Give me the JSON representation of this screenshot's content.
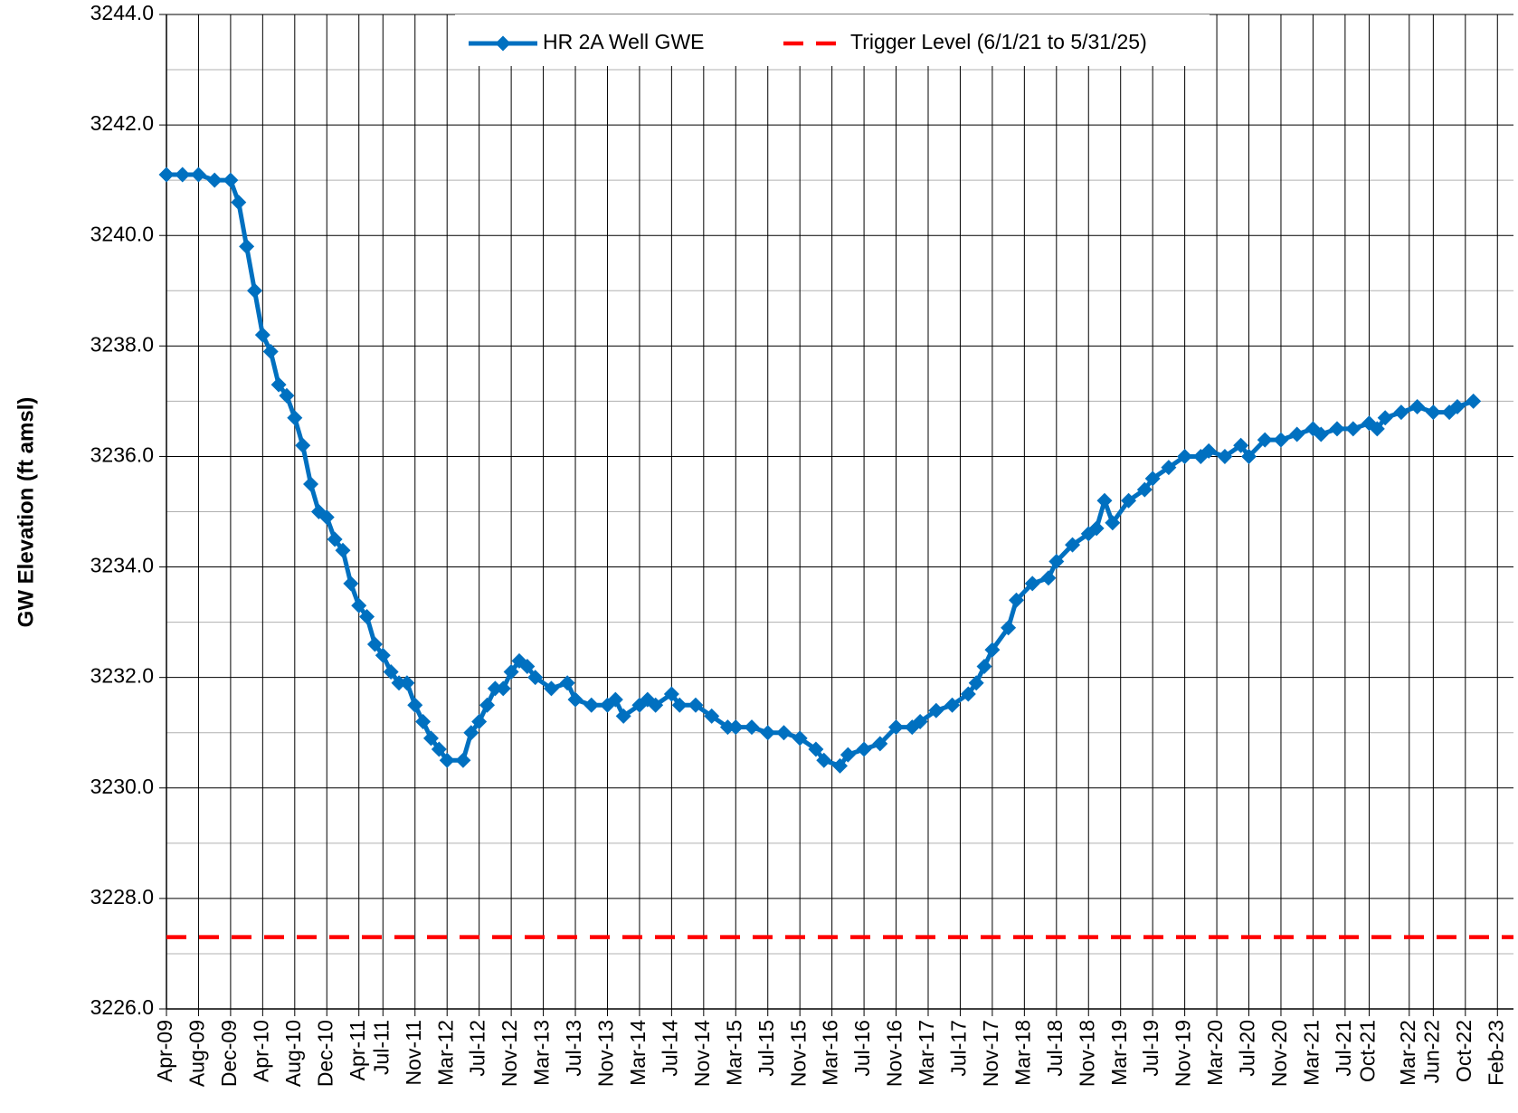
{
  "chart_data": {
    "type": "line",
    "y_label": "GW Elevation (ft amsl)",
    "x": [
      "2009-04",
      "2009-06",
      "2009-08",
      "2009-10",
      "2009-12",
      "2010-01",
      "2010-02",
      "2010-03",
      "2010-04",
      "2010-05",
      "2010-06",
      "2010-07",
      "2010-08",
      "2010-09",
      "2010-10",
      "2010-11",
      "2010-12",
      "2011-01",
      "2011-02",
      "2011-03",
      "2011-04",
      "2011-05",
      "2011-06",
      "2011-07",
      "2011-08",
      "2011-09",
      "2011-10",
      "2011-11",
      "2011-12",
      "2012-01",
      "2012-02",
      "2012-03",
      "2012-05",
      "2012-06",
      "2012-07",
      "2012-08",
      "2012-09",
      "2012-10",
      "2012-11",
      "2012-12",
      "2013-01",
      "2013-02",
      "2013-04",
      "2013-06",
      "2013-07",
      "2013-09",
      "2013-11",
      "2013-12",
      "2014-01",
      "2014-03",
      "2014-04",
      "2014-05",
      "2014-07",
      "2014-08",
      "2014-10",
      "2014-12",
      "2015-02",
      "2015-03",
      "2015-05",
      "2015-07",
      "2015-09",
      "2015-11",
      "2016-01",
      "2016-02",
      "2016-04",
      "2016-05",
      "2016-07",
      "2016-09",
      "2016-11",
      "2017-01",
      "2017-02",
      "2017-04",
      "2017-06",
      "2017-08",
      "2017-09",
      "2017-10",
      "2017-11",
      "2018-01",
      "2018-02",
      "2018-04",
      "2018-06",
      "2018-07",
      "2018-09",
      "2018-11",
      "2018-12",
      "2019-01",
      "2019-02",
      "2019-04",
      "2019-06",
      "2019-07",
      "2019-09",
      "2019-11",
      "2020-01",
      "2020-02",
      "2020-04",
      "2020-06",
      "2020-07",
      "2020-09",
      "2020-11",
      "2021-01",
      "2021-03",
      "2021-04",
      "2021-06",
      "2021-08",
      "2021-10",
      "2021-11",
      "2021-12",
      "2022-02",
      "2022-04",
      "2022-06",
      "2022-08",
      "2022-09",
      "2022-11"
    ],
    "series": [
      {
        "name": "HR 2A Well GWE",
        "color": "#0070c0",
        "marker": "diamond",
        "values": [
          3241.1,
          3241.1,
          3241.1,
          3241.0,
          3241.0,
          3240.6,
          3239.8,
          3239.0,
          3238.2,
          3237.9,
          3237.3,
          3237.1,
          3236.7,
          3236.2,
          3235.5,
          3235.0,
          3234.9,
          3234.5,
          3234.3,
          3233.7,
          3233.3,
          3233.1,
          3232.6,
          3232.4,
          3232.1,
          3231.9,
          3231.9,
          3231.5,
          3231.2,
          3230.9,
          3230.7,
          3230.5,
          3230.5,
          3231.0,
          3231.2,
          3231.5,
          3231.8,
          3231.8,
          3232.1,
          3232.3,
          3232.2,
          3232.0,
          3231.8,
          3231.9,
          3231.6,
          3231.5,
          3231.5,
          3231.6,
          3231.3,
          3231.5,
          3231.6,
          3231.5,
          3231.7,
          3231.5,
          3231.5,
          3231.3,
          3231.1,
          3231.1,
          3231.1,
          3231.0,
          3231.0,
          3230.9,
          3230.7,
          3230.5,
          3230.4,
          3230.6,
          3230.7,
          3230.8,
          3231.1,
          3231.1,
          3231.2,
          3231.4,
          3231.5,
          3231.7,
          3231.9,
          3232.2,
          3232.5,
          3232.9,
          3233.4,
          3233.7,
          3233.8,
          3234.1,
          3234.4,
          3234.6,
          3234.7,
          3235.2,
          3234.8,
          3235.2,
          3235.4,
          3235.6,
          3235.8,
          3236.0,
          3236.0,
          3236.1,
          3236.0,
          3236.2,
          3236.0,
          3236.3,
          3236.3,
          3236.4,
          3236.5,
          3236.4,
          3236.5,
          3236.5,
          3236.6,
          3236.5,
          3236.7,
          3236.8,
          3236.9,
          3236.8,
          3236.8,
          3236.9,
          3237.0
        ]
      }
    ],
    "hlines": [
      {
        "name": "Trigger Level (6/1/21 to 5/31/25)",
        "color": "#ff0000",
        "value": 3227.3,
        "dashed": true
      }
    ],
    "xlim": [
      "2009-04",
      "2023-04"
    ],
    "xticks": [
      {
        "value": "2009-04",
        "label": "Apr-09"
      },
      {
        "value": "2009-08",
        "label": "Aug-09"
      },
      {
        "value": "2009-12",
        "label": "Dec-09"
      },
      {
        "value": "2010-04",
        "label": "Apr-10"
      },
      {
        "value": "2010-08",
        "label": "Aug-10"
      },
      {
        "value": "2010-12",
        "label": "Dec-10"
      },
      {
        "value": "2011-04",
        "label": "Apr-11"
      },
      {
        "value": "2011-07",
        "label": "Jul-11"
      },
      {
        "value": "2011-11",
        "label": "Nov-11"
      },
      {
        "value": "2012-03",
        "label": "Mar-12"
      },
      {
        "value": "2012-07",
        "label": "Jul-12"
      },
      {
        "value": "2012-11",
        "label": "Nov-12"
      },
      {
        "value": "2013-03",
        "label": "Mar-13"
      },
      {
        "value": "2013-07",
        "label": "Jul-13"
      },
      {
        "value": "2013-11",
        "label": "Nov-13"
      },
      {
        "value": "2014-03",
        "label": "Mar-14"
      },
      {
        "value": "2014-07",
        "label": "Jul-14"
      },
      {
        "value": "2014-11",
        "label": "Nov-14"
      },
      {
        "value": "2015-03",
        "label": "Mar-15"
      },
      {
        "value": "2015-07",
        "label": "Jul-15"
      },
      {
        "value": "2015-11",
        "label": "Nov-15"
      },
      {
        "value": "2016-03",
        "label": "Mar-16"
      },
      {
        "value": "2016-07",
        "label": "Jul-16"
      },
      {
        "value": "2016-11",
        "label": "Nov-16"
      },
      {
        "value": "2017-03",
        "label": "Mar-17"
      },
      {
        "value": "2017-07",
        "label": "Jul-17"
      },
      {
        "value": "2017-11",
        "label": "Nov-17"
      },
      {
        "value": "2018-03",
        "label": "Mar-18"
      },
      {
        "value": "2018-07",
        "label": "Jul-18"
      },
      {
        "value": "2018-11",
        "label": "Nov-18"
      },
      {
        "value": "2019-03",
        "label": "Mar-19"
      },
      {
        "value": "2019-07",
        "label": "Jul-19"
      },
      {
        "value": "2019-11",
        "label": "Nov-19"
      },
      {
        "value": "2020-03",
        "label": "Mar-20"
      },
      {
        "value": "2020-07",
        "label": "Jul-20"
      },
      {
        "value": "2020-11",
        "label": "Nov-20"
      },
      {
        "value": "2021-03",
        "label": "Mar-21"
      },
      {
        "value": "2021-07",
        "label": "Jul-21"
      },
      {
        "value": "2021-10",
        "label": "Oct-21"
      },
      {
        "value": "2022-03",
        "label": "Mar-22"
      },
      {
        "value": "2022-06",
        "label": "Jun-22"
      },
      {
        "value": "2022-10",
        "label": "Oct-22"
      },
      {
        "value": "2023-02",
        "label": "Feb-23"
      }
    ],
    "ylim": [
      3226,
      3244
    ],
    "yticks": [
      {
        "value": 3226,
        "label": "3226.0"
      },
      {
        "value": 3228,
        "label": "3228.0"
      },
      {
        "value": 3230,
        "label": "3230.0"
      },
      {
        "value": 3232,
        "label": "3232.0"
      },
      {
        "value": 3234,
        "label": "3234.0"
      },
      {
        "value": 3236,
        "label": "3236.0"
      },
      {
        "value": 3238,
        "label": "3238.0"
      },
      {
        "value": 3240,
        "label": "3240.0"
      },
      {
        "value": 3242,
        "label": "3242.0"
      },
      {
        "value": 3244,
        "label": "3244.0"
      }
    ],
    "yminor_ticks": [
      3227,
      3229,
      3231,
      3233,
      3235,
      3237,
      3239,
      3241,
      3243
    ],
    "grid": true,
    "legend": "top"
  }
}
